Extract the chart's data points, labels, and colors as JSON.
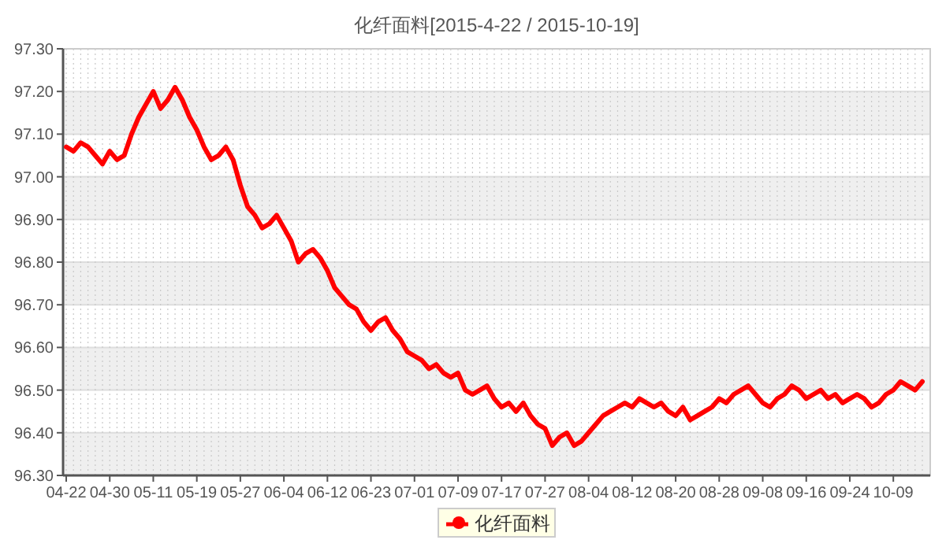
{
  "chart_data": {
    "type": "line",
    "title": "化纤面料[2015-4-22 / 2015-10-19]",
    "categories": [
      "04-22",
      null,
      null,
      null,
      null,
      null,
      "04-30",
      null,
      null,
      null,
      null,
      null,
      "05-11",
      null,
      null,
      null,
      null,
      null,
      "05-19",
      null,
      null,
      null,
      null,
      null,
      "05-27",
      null,
      null,
      null,
      null,
      null,
      "06-04",
      null,
      null,
      null,
      null,
      null,
      "06-12",
      null,
      null,
      null,
      null,
      null,
      "06-23",
      null,
      null,
      null,
      null,
      null,
      "07-01",
      null,
      null,
      null,
      null,
      null,
      "07-09",
      null,
      null,
      null,
      null,
      null,
      "07-17",
      null,
      null,
      null,
      null,
      null,
      "07-27",
      null,
      null,
      null,
      null,
      null,
      "08-04",
      null,
      null,
      null,
      null,
      null,
      "08-12",
      null,
      null,
      null,
      null,
      null,
      "08-20",
      null,
      null,
      null,
      null,
      null,
      "08-28",
      null,
      null,
      null,
      null,
      null,
      "09-08",
      null,
      null,
      null,
      null,
      null,
      "09-16",
      null,
      null,
      null,
      null,
      null,
      "09-24",
      null,
      null,
      null,
      null,
      null,
      "10-09",
      null,
      null,
      null,
      null
    ],
    "series": [
      {
        "name": "化纤面料",
        "color": "#ff0000",
        "values": [
          97.07,
          97.06,
          97.08,
          97.07,
          97.05,
          97.03,
          97.06,
          97.04,
          97.05,
          97.1,
          97.14,
          97.17,
          97.2,
          97.16,
          97.18,
          97.21,
          97.18,
          97.14,
          97.11,
          97.07,
          97.04,
          97.05,
          97.07,
          97.04,
          96.98,
          96.93,
          96.91,
          96.88,
          96.89,
          96.91,
          96.88,
          96.85,
          96.8,
          96.82,
          96.83,
          96.81,
          96.78,
          96.74,
          96.72,
          96.7,
          96.69,
          96.66,
          96.64,
          96.66,
          96.67,
          96.64,
          96.62,
          96.59,
          96.58,
          96.57,
          96.55,
          96.56,
          96.54,
          96.53,
          96.54,
          96.5,
          96.49,
          96.5,
          96.51,
          96.48,
          96.46,
          96.47,
          96.45,
          96.47,
          96.44,
          96.42,
          96.41,
          96.37,
          96.39,
          96.4,
          96.37,
          96.38,
          96.4,
          96.42,
          96.44,
          96.45,
          96.46,
          96.47,
          96.46,
          96.48,
          96.47,
          96.46,
          96.47,
          96.45,
          96.44,
          96.46,
          96.43,
          96.44,
          96.45,
          96.46,
          96.48,
          96.47,
          96.49,
          96.5,
          96.51,
          96.49,
          96.47,
          96.46,
          96.48,
          96.49,
          96.51,
          96.5,
          96.48,
          96.49,
          96.5,
          96.48,
          96.49,
          96.47,
          96.48,
          96.49,
          96.48,
          96.46,
          96.47,
          96.49,
          96.5,
          96.52,
          96.51,
          96.5,
          96.52
        ]
      }
    ],
    "ylim": [
      96.3,
      97.3
    ],
    "yticks": [
      {
        "value": 96.3,
        "label": "96.30"
      },
      {
        "value": 96.4,
        "label": "96.40"
      },
      {
        "value": 96.5,
        "label": "96.50"
      },
      {
        "value": 96.6,
        "label": "96.60"
      },
      {
        "value": 96.7,
        "label": "96.70"
      },
      {
        "value": 96.8,
        "label": "96.80"
      },
      {
        "value": 96.9,
        "label": "96.90"
      },
      {
        "value": 97.0,
        "label": "97.00"
      },
      {
        "value": 97.1,
        "label": "97.10"
      },
      {
        "value": 97.2,
        "label": "97.20"
      },
      {
        "value": 97.3,
        "label": "97.30"
      }
    ],
    "grid": true,
    "legend": "bottom",
    "marker": "none",
    "line_style": "solid"
  }
}
